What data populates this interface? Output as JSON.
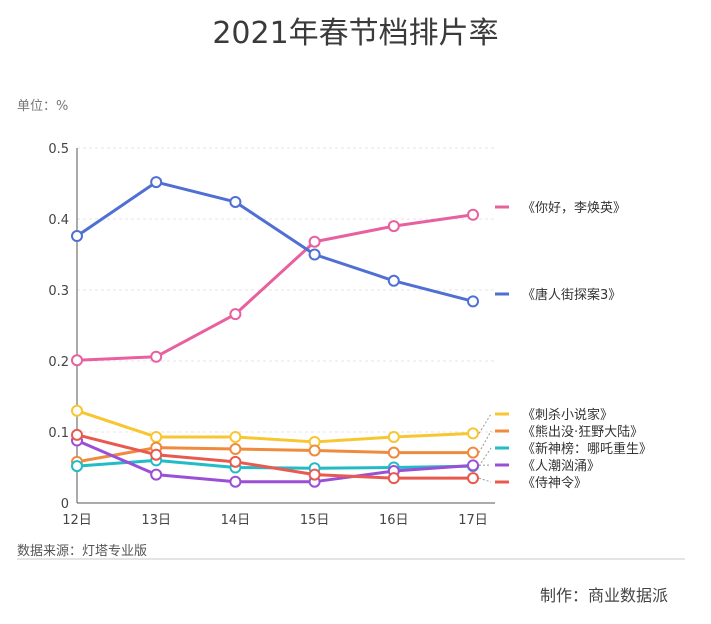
{
  "header": {
    "title": "2021年春节档排片率",
    "unit": "单位：%"
  },
  "footer": {
    "source": "数据来源：灯塔专业版",
    "credit": "制作：商业数据派"
  },
  "chart_data": {
    "type": "line",
    "categories": [
      "12日",
      "13日",
      "14日",
      "15日",
      "16日",
      "17日"
    ],
    "ylim": [
      0,
      0.5
    ],
    "yticks": [
      "0",
      "0.1",
      "0.2",
      "0.3",
      "0.4",
      "0.5"
    ],
    "grid": true,
    "legend_placement": "right",
    "series": [
      {
        "name": "《你好，李焕英》",
        "color": "#e8609f",
        "values": [
          0.201,
          0.206,
          0.266,
          0.368,
          0.39,
          0.406
        ]
      },
      {
        "name": "《唐人街探案3》",
        "color": "#4f6fd4",
        "values": [
          0.376,
          0.452,
          0.424,
          0.35,
          0.313,
          0.284
        ]
      },
      {
        "name": "《刺杀小说家》",
        "color": "#f7c630",
        "values": [
          0.13,
          0.093,
          0.093,
          0.086,
          0.093,
          0.098
        ]
      },
      {
        "name": "《熊出没·狂野大陆》",
        "color": "#f08a3c",
        "values": [
          0.058,
          0.078,
          0.076,
          0.074,
          0.071,
          0.071
        ]
      },
      {
        "name": "《新神榜：哪吒重生》",
        "color": "#22bcc4",
        "values": [
          0.052,
          0.06,
          0.05,
          0.049,
          0.05,
          0.052
        ]
      },
      {
        "name": "《人潮汹涌》",
        "color": "#9b4fd6",
        "values": [
          0.088,
          0.04,
          0.03,
          0.03,
          0.045,
          0.053
        ]
      },
      {
        "name": "《侍神令》",
        "color": "#e85a4f",
        "values": [
          0.096,
          0.068,
          0.058,
          0.04,
          0.035,
          0.035
        ]
      }
    ]
  }
}
